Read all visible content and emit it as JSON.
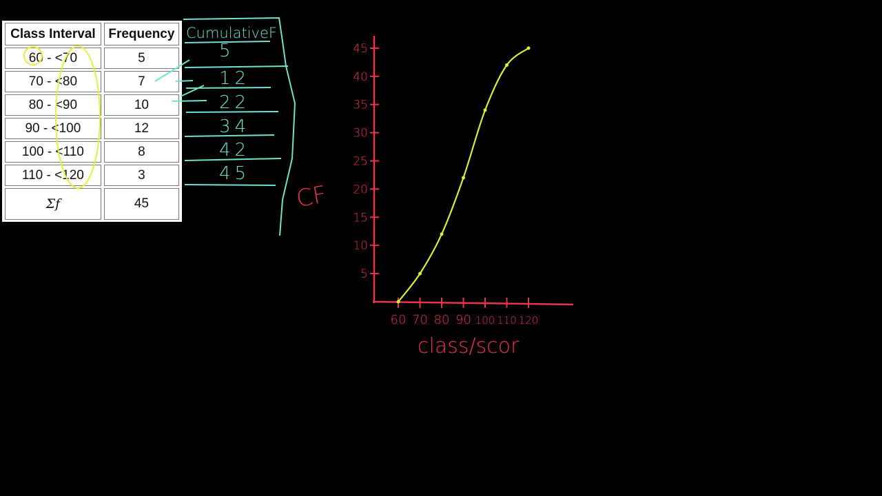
{
  "table": {
    "headers": [
      "Class Interval",
      "Frequency"
    ],
    "rows": [
      {
        "interval": "60 - <70",
        "frequency": "5"
      },
      {
        "interval": "70 - <80",
        "frequency": "7"
      },
      {
        "interval": "80 - <90",
        "frequency": "10"
      },
      {
        "interval": "90 - <100",
        "frequency": "12"
      },
      {
        "interval": "100 - <110",
        "frequency": "8"
      },
      {
        "interval": "110 - <120",
        "frequency": "3"
      }
    ],
    "sum_label": "Σf",
    "sum_value": "45"
  },
  "cumulative": {
    "header": "CumulativeF",
    "values": [
      "5",
      "12",
      "22",
      "34",
      "42",
      "45"
    ]
  },
  "colors": {
    "axis": "#e8344c",
    "curve": "#d8ef3a",
    "cumulative": "#6fe3cf",
    "highlight": "#e6f03c"
  },
  "chart_data": {
    "type": "line",
    "title": "",
    "xlabel": "class/scor",
    "ylabel": "CF",
    "x": [
      60,
      70,
      80,
      90,
      100,
      110,
      120
    ],
    "values": [
      0,
      5,
      12,
      22,
      34,
      42,
      45
    ],
    "xticks": [
      "60",
      "70",
      "80",
      "90",
      "100",
      "110",
      "120"
    ],
    "yticks": [
      "5",
      "10",
      "15",
      "20",
      "25",
      "30",
      "35",
      "40",
      "45"
    ],
    "xlim": [
      60,
      120
    ],
    "ylim": [
      0,
      45
    ],
    "grid": false
  }
}
